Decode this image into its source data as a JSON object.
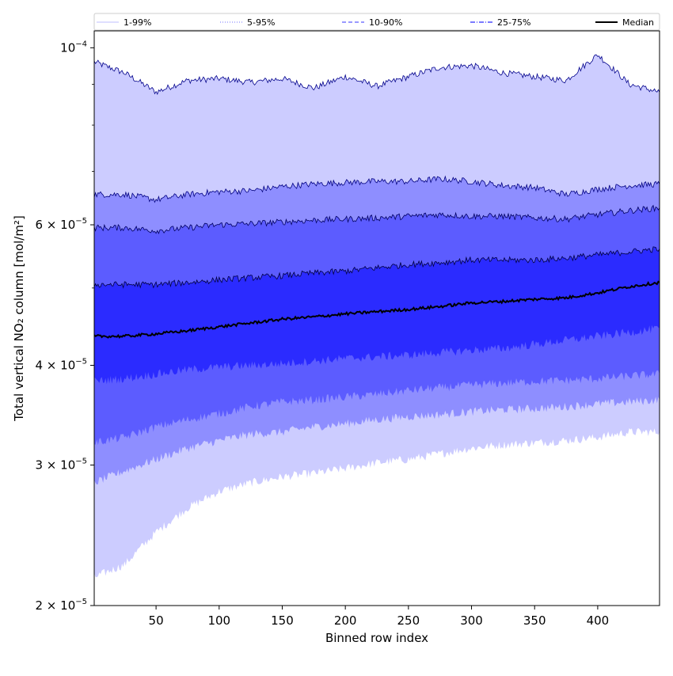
{
  "chart_data": {
    "type": "area",
    "xlabel": "Binned row index",
    "ylabel": "Total vertical NO₂ column [mol/m²]",
    "xlim": [
      1,
      449
    ],
    "ylim": [
      2e-05,
      0.000105
    ],
    "y_scale": "log",
    "x_ticks": [
      50,
      100,
      150,
      200,
      250,
      300,
      350,
      400
    ],
    "x_tick_labels": [
      "50",
      "100",
      "150",
      "200",
      "250",
      "300",
      "350",
      "400"
    ],
    "y_ticks": [
      {
        "value": 2e-05,
        "base": "2",
        "exp": "−5"
      },
      {
        "value": 3e-05,
        "base": "3",
        "exp": "−5"
      },
      {
        "value": 4e-05,
        "base": "4",
        "exp": "−5"
      },
      {
        "value": 6e-05,
        "base": "6",
        "exp": "−5"
      },
      {
        "value": 0.0001,
        "base": "",
        "exp": "−4"
      }
    ],
    "legend_position": "top (above plot)",
    "legend": [
      {
        "label": "1-99%",
        "color": "#ccccff",
        "style": "solid"
      },
      {
        "label": "5-95%",
        "color": "#8e8eff",
        "style": "dotted"
      },
      {
        "label": "10-90%",
        "color": "#5c5cff",
        "style": "dashed"
      },
      {
        "label": "25-75%",
        "color": "#2b2bff",
        "style": "dashdot"
      },
      {
        "label": "Median",
        "color": "#000000",
        "style": "solid"
      }
    ],
    "x": [
      1,
      25,
      50,
      75,
      100,
      125,
      150,
      175,
      200,
      225,
      250,
      275,
      300,
      325,
      350,
      375,
      400,
      425,
      449
    ],
    "series": [
      {
        "name": "1-99%",
        "color": "#ccccff",
        "lower": [
          2.17e-05,
          2.25e-05,
          2.47e-05,
          2.65e-05,
          2.78e-05,
          2.85e-05,
          2.9e-05,
          2.93e-05,
          2.97e-05,
          3.02e-05,
          3.05e-05,
          3.1e-05,
          3.15e-05,
          3.18e-05,
          3.2e-05,
          3.22e-05,
          3.25e-05,
          3.3e-05,
          3.3e-05
        ],
        "upper": [
          9.6e-05,
          9.3e-05,
          8.8e-05,
          9.1e-05,
          9.15e-05,
          9.05e-05,
          9.15e-05,
          8.9e-05,
          9.2e-05,
          8.95e-05,
          9.2e-05,
          9.45e-05,
          9.5e-05,
          9.3e-05,
          9.2e-05,
          9.1e-05,
          9.8e-05,
          9e-05,
          8.8e-05
        ]
      },
      {
        "name": "5-95%",
        "color": "#8e8eff",
        "lower": [
          2.85e-05,
          2.95e-05,
          3.05e-05,
          3.15e-05,
          3.22e-05,
          3.28e-05,
          3.3e-05,
          3.35e-05,
          3.38e-05,
          3.42e-05,
          3.45e-05,
          3.47e-05,
          3.5e-05,
          3.52e-05,
          3.53e-05,
          3.55e-05,
          3.58e-05,
          3.6e-05,
          3.62e-05
        ],
        "upper": [
          6.55e-05,
          6.55e-05,
          6.45e-05,
          6.55e-05,
          6.6e-05,
          6.62e-05,
          6.7e-05,
          6.75e-05,
          6.78e-05,
          6.8e-05,
          6.8e-05,
          6.85e-05,
          6.8e-05,
          6.72e-05,
          6.68e-05,
          6.55e-05,
          6.65e-05,
          6.72e-05,
          6.75e-05
        ]
      },
      {
        "name": "10-90%",
        "color": "#5c5cff",
        "lower": [
          3.2e-05,
          3.25e-05,
          3.35e-05,
          3.42e-05,
          3.48e-05,
          3.55e-05,
          3.6e-05,
          3.62e-05,
          3.65e-05,
          3.68e-05,
          3.72e-05,
          3.75e-05,
          3.78e-05,
          3.8e-05,
          3.82e-05,
          3.83e-05,
          3.85e-05,
          3.88e-05,
          3.9e-05
        ],
        "upper": [
          5.95e-05,
          5.95e-05,
          5.9e-05,
          5.95e-05,
          6e-05,
          6.02e-05,
          6.05e-05,
          6.08e-05,
          6.1e-05,
          6.12e-05,
          6.15e-05,
          6.18e-05,
          6.15e-05,
          6.15e-05,
          6.12e-05,
          6.1e-05,
          6.18e-05,
          6.25e-05,
          6.3e-05
        ]
      },
      {
        "name": "25-75%",
        "color": "#2b2bff",
        "lower": [
          3.82e-05,
          3.85e-05,
          3.9e-05,
          3.95e-05,
          3.98e-05,
          4e-05,
          4.02e-05,
          4.05e-05,
          4.08e-05,
          4.1e-05,
          4.12e-05,
          4.15e-05,
          4.18e-05,
          4.2e-05,
          4.25e-05,
          4.3e-05,
          4.35e-05,
          4.4e-05,
          4.45e-05
        ],
        "upper": [
          5.05e-05,
          5.05e-05,
          5.05e-05,
          5.08e-05,
          5.12e-05,
          5.15e-05,
          5.18e-05,
          5.22e-05,
          5.25e-05,
          5.3e-05,
          5.35e-05,
          5.38e-05,
          5.42e-05,
          5.42e-05,
          5.42e-05,
          5.45e-05,
          5.5e-05,
          5.55e-05,
          5.6e-05
        ]
      },
      {
        "name": "Median",
        "color": "#000000",
        "values": [
          4.35e-05,
          4.35e-05,
          4.38e-05,
          4.42e-05,
          4.47e-05,
          4.52e-05,
          4.57e-05,
          4.6e-05,
          4.64e-05,
          4.67e-05,
          4.7e-05,
          4.74e-05,
          4.79e-05,
          4.81e-05,
          4.84e-05,
          4.86e-05,
          4.93e-05,
          5.02e-05,
          5.08e-05
        ]
      }
    ]
  }
}
